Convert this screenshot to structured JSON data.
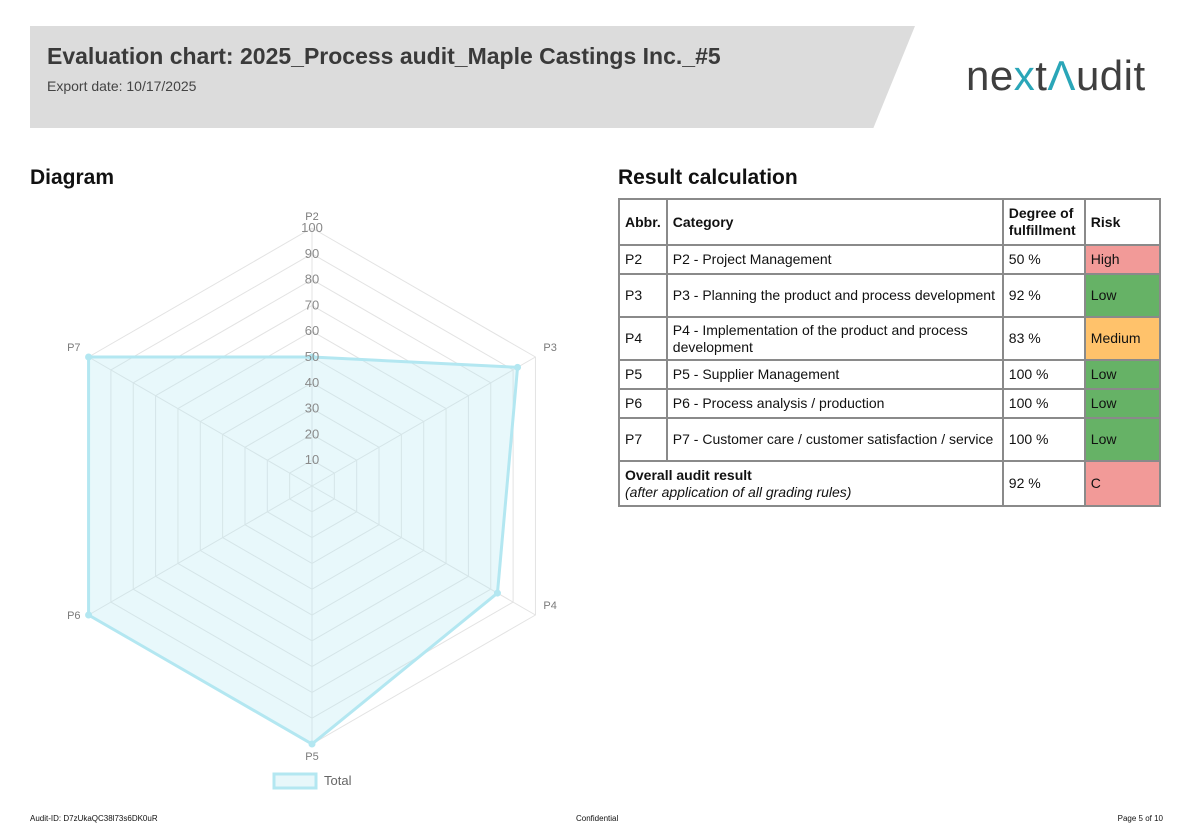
{
  "header": {
    "title": "Evaluation chart: 2025_Process audit_Maple Castings Inc._#5",
    "export_date": "Export date: 10/17/2025"
  },
  "logo": {
    "part1": "ne",
    "part2": "x",
    "part3": "t",
    "part4": "Λ",
    "part5": "udit"
  },
  "diagram": {
    "title": "Diagram"
  },
  "result": {
    "title": "Result calculation",
    "headers": {
      "abbr": "Abbr.",
      "category": "Category",
      "degree": "Degree of fulfillment",
      "risk": "Risk"
    },
    "rows": [
      {
        "abbr": "P2",
        "category": "P2 - Project Management",
        "degree": "50 %",
        "risk": "High"
      },
      {
        "abbr": "P3",
        "category": "P3 - Planning the product and process development",
        "degree": "92 %",
        "risk": "Low"
      },
      {
        "abbr": "P4",
        "category": "P4 - Implementation of the product and process development",
        "degree": "83 %",
        "risk": "Medium"
      },
      {
        "abbr": "P5",
        "category": "P5 - Supplier Management",
        "degree": "100 %",
        "risk": "Low"
      },
      {
        "abbr": "P6",
        "category": "P6 - Process analysis / production",
        "degree": "100 %",
        "risk": "Low"
      },
      {
        "abbr": "P7",
        "category": "P7 - Customer care / customer satisfaction / service",
        "degree": "100 %",
        "risk": "Low"
      }
    ],
    "overall": {
      "label": "Overall audit result",
      "note": "(after application of all grading rules)",
      "degree": "92 %",
      "grade": "C"
    },
    "risk_colors": {
      "High": "#f29a98",
      "Low": "#66b266",
      "Medium": "#ffc26b",
      "C": "#f29a98"
    }
  },
  "chart_data": {
    "type": "radar",
    "axes": [
      "P2",
      "P3",
      "P4",
      "P5",
      "P6",
      "P7"
    ],
    "series": [
      {
        "name": "Total",
        "values": [
          50,
          92,
          83,
          100,
          100,
          100
        ]
      }
    ],
    "scale": {
      "min": 0,
      "max": 100,
      "step": 10
    },
    "tick_labels": [
      "10",
      "20",
      "30",
      "40",
      "50",
      "60",
      "70",
      "80",
      "90",
      "100"
    ],
    "legend": [
      "Total"
    ],
    "legend_position": "bottom",
    "series_color": "#b3e7f1"
  },
  "footer": {
    "audit_id": "Audit-ID: D7zUkaQC38l73s6DK0uR",
    "confidential": "Confidential",
    "page": "Page 5 of 10"
  }
}
